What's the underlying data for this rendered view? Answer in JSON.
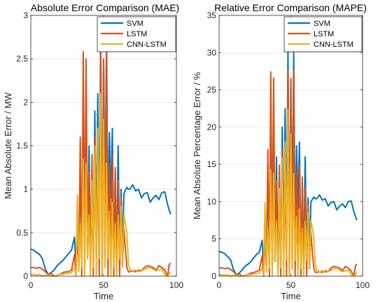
{
  "colors": {
    "svm": "#0072BD",
    "lstm": "#D95319",
    "cnn_lstm": "#EDB120",
    "grid": "#E6E6E6",
    "axis": "#262626"
  },
  "chart_data": [
    {
      "type": "line",
      "title": "Absolute Error Comparison (MAE)",
      "xlabel": "Time",
      "ylabel": "Mean Absolute Error / MW",
      "xlim": [
        0,
        100
      ],
      "ylim": [
        0,
        3
      ],
      "xticks": [
        "0",
        "50",
        "100"
      ],
      "yticks": [
        "0",
        "0.5",
        "1",
        "1.5",
        "2",
        "2.5",
        "3"
      ],
      "grid": "on",
      "legend_position": "top-right",
      "series": [
        {
          "name": "SVM",
          "color": "#0072BD",
          "x": [
            0,
            2,
            4,
            6,
            8,
            10,
            12,
            14,
            16,
            18,
            20,
            22,
            24,
            26,
            28,
            30,
            31,
            32,
            33,
            34,
            35,
            36,
            37,
            38,
            39,
            40,
            41,
            42,
            43,
            44,
            45,
            46,
            47,
            48,
            49,
            50,
            51,
            52,
            53,
            54,
            55,
            56,
            57,
            58,
            59,
            60,
            61,
            62,
            63,
            64,
            65,
            66,
            67,
            68,
            70,
            72,
            74,
            76,
            78,
            80,
            82,
            84,
            86,
            88,
            90,
            92,
            94,
            96
          ],
          "y": [
            0.31,
            0.3,
            0.27,
            0.25,
            0.2,
            0.08,
            0.02,
            0.04,
            0.07,
            0.12,
            0.15,
            0.18,
            0.22,
            0.26,
            0.3,
            0.45,
            0.1,
            0.6,
            0.2,
            1.2,
            0.3,
            2.05,
            0.5,
            1.6,
            0.2,
            1.5,
            0.15,
            0.9,
            0.1,
            1.9,
            0.3,
            2.1,
            0.4,
            2.88,
            0.3,
            2.5,
            0.8,
            2.82,
            0.5,
            1.65,
            0.9,
            1.7,
            0.1,
            1.2,
            0.15,
            1.5,
            0.2,
            1.0,
            0.3,
            0.95,
            0.99,
            1.02,
            1.0,
            1.0,
            1.05,
            0.98,
            1.0,
            0.9,
            0.95,
            0.96,
            0.85,
            0.9,
            0.93,
            0.88,
            0.96,
            0.97,
            0.82,
            0.71
          ]
        },
        {
          "name": "LSTM",
          "color": "#D95319",
          "x": [
            0,
            2,
            4,
            6,
            8,
            10,
            12,
            14,
            16,
            18,
            20,
            22,
            24,
            26,
            28,
            30,
            31,
            32,
            33,
            34,
            35,
            36,
            37,
            38,
            39,
            40,
            41,
            42,
            43,
            44,
            45,
            46,
            47,
            48,
            49,
            50,
            51,
            52,
            53,
            54,
            55,
            56,
            57,
            58,
            59,
            60,
            61,
            62,
            63,
            64,
            65,
            66,
            67,
            68,
            70,
            72,
            74,
            76,
            78,
            80,
            82,
            84,
            86,
            88,
            90,
            92,
            94,
            95,
            96
          ],
          "y": [
            0.1,
            0.1,
            0.09,
            0.1,
            0.08,
            0.05,
            0.02,
            0.03,
            0.0,
            0.01,
            0.02,
            0.04,
            0.05,
            0.05,
            0.07,
            0.25,
            0.0,
            0.5,
            0.1,
            1.6,
            0.0,
            2.58,
            0.4,
            2.5,
            0.3,
            1.2,
            0.1,
            1.4,
            0.0,
            1.6,
            0.2,
            1.3,
            0.0,
            2.6,
            0.0,
            2.5,
            0.1,
            2.6,
            0.0,
            1.3,
            0.2,
            1.4,
            0.0,
            1.25,
            0.1,
            1.1,
            0.0,
            0.9,
            0.1,
            0.55,
            0.3,
            0.1,
            0.05,
            0.05,
            0.06,
            0.05,
            0.07,
            0.06,
            0.1,
            0.12,
            0.11,
            0.1,
            0.07,
            0.12,
            0.1,
            0.07,
            0.0,
            0.13,
            0.15
          ]
        },
        {
          "name": "CNN-LSTM",
          "color": "#EDB120",
          "x": [
            0,
            2,
            4,
            6,
            8,
            10,
            12,
            14,
            16,
            18,
            20,
            22,
            24,
            26,
            28,
            30,
            31,
            32,
            33,
            34,
            35,
            36,
            37,
            38,
            39,
            40,
            41,
            42,
            43,
            44,
            45,
            46,
            47,
            48,
            49,
            50,
            51,
            52,
            53,
            54,
            55,
            56,
            57,
            58,
            59,
            60,
            61,
            62,
            63,
            64,
            65,
            66,
            67,
            68,
            70,
            72,
            74,
            76,
            78,
            80,
            82,
            84,
            86,
            88,
            90,
            92,
            94,
            96
          ],
          "y": [
            0.02,
            0.02,
            0.01,
            0.02,
            0.0,
            0.01,
            0.01,
            0.0,
            0.0,
            0.01,
            0.02,
            0.02,
            0.03,
            0.03,
            0.04,
            0.1,
            0.0,
            0.93,
            0.05,
            0.6,
            0.1,
            1.35,
            0.0,
            1.3,
            0.2,
            0.7,
            0.0,
            1.1,
            0.1,
            1.5,
            0.0,
            1.7,
            0.2,
            2.1,
            0.0,
            1.8,
            0.1,
            1.3,
            0.2,
            0.75,
            0.0,
            0.85,
            0.1,
            0.6,
            0.0,
            0.7,
            0.2,
            0.8,
            0.1,
            0.7,
            0.6,
            0.5,
            0.15,
            0.08,
            0.06,
            0.07,
            0.05,
            0.06,
            0.08,
            0.09,
            0.1,
            0.08,
            0.06,
            0.07,
            0.08,
            0.02,
            0.0,
            0.05
          ]
        }
      ]
    },
    {
      "type": "line",
      "title": "Relative Error Comparison (MAPE)",
      "xlabel": "Time",
      "ylabel": "Mean Absolute Percentage Error / %",
      "xlim": [
        0,
        100
      ],
      "ylim": [
        0,
        35
      ],
      "xticks": [
        "0",
        "50",
        "100"
      ],
      "yticks": [
        "0",
        "5",
        "10",
        "15",
        "20",
        "25",
        "30",
        "35"
      ],
      "grid": "on",
      "legend_position": "top-right",
      "series": [
        {
          "name": "SVM",
          "color": "#0072BD",
          "x": [
            0,
            2,
            4,
            6,
            8,
            10,
            12,
            14,
            16,
            18,
            20,
            22,
            24,
            26,
            28,
            30,
            31,
            32,
            33,
            34,
            35,
            36,
            37,
            38,
            39,
            40,
            41,
            42,
            43,
            44,
            45,
            46,
            47,
            48,
            49,
            50,
            51,
            52,
            53,
            54,
            55,
            56,
            57,
            58,
            59,
            60,
            61,
            62,
            63,
            64,
            65,
            66,
            67,
            68,
            70,
            72,
            74,
            76,
            78,
            80,
            82,
            84,
            86,
            88,
            90,
            92,
            94,
            96
          ],
          "y": [
            3.3,
            3.2,
            3.0,
            2.6,
            2.2,
            0.9,
            0.2,
            0.4,
            0.8,
            1.3,
            1.6,
            1.9,
            2.4,
            2.9,
            3.2,
            4.8,
            1.0,
            6.4,
            2.0,
            13.0,
            3.0,
            21.8,
            5.0,
            17.0,
            2.0,
            16.0,
            1.5,
            9.5,
            1.0,
            20.0,
            3.0,
            22.5,
            4.0,
            30.6,
            3.0,
            26.5,
            8.0,
            30.0,
            5.0,
            17.5,
            9.0,
            18.0,
            1.0,
            12.5,
            1.5,
            16.0,
            2.0,
            10.5,
            3.0,
            10.0,
            10.3,
            10.6,
            10.4,
            10.4,
            10.9,
            10.2,
            10.4,
            9.4,
            9.9,
            10.0,
            8.9,
            9.4,
            9.7,
            9.2,
            10.0,
            10.1,
            8.6,
            7.5
          ]
        },
        {
          "name": "LSTM",
          "color": "#D95319",
          "x": [
            0,
            2,
            4,
            6,
            8,
            10,
            12,
            14,
            16,
            18,
            20,
            22,
            24,
            26,
            28,
            30,
            31,
            32,
            33,
            34,
            35,
            36,
            37,
            38,
            39,
            40,
            41,
            42,
            43,
            44,
            45,
            46,
            47,
            48,
            49,
            50,
            51,
            52,
            53,
            54,
            55,
            56,
            57,
            58,
            59,
            60,
            61,
            62,
            63,
            64,
            65,
            66,
            67,
            68,
            70,
            72,
            74,
            76,
            78,
            80,
            82,
            84,
            86,
            88,
            90,
            92,
            94,
            95,
            96
          ],
          "y": [
            1.1,
            1.1,
            1.0,
            1.1,
            0.9,
            0.6,
            0.2,
            0.3,
            0.0,
            0.1,
            0.2,
            0.4,
            0.5,
            0.6,
            0.8,
            2.7,
            0.0,
            5.3,
            1.0,
            17.0,
            0.0,
            27.4,
            4.0,
            26.6,
            3.0,
            12.8,
            1.0,
            14.9,
            0.0,
            17.0,
            2.0,
            13.8,
            0.0,
            27.6,
            0.0,
            26.5,
            1.0,
            27.6,
            0.0,
            13.8,
            2.0,
            14.9,
            0.0,
            13.3,
            1.0,
            11.7,
            0.0,
            9.6,
            1.0,
            5.9,
            3.2,
            1.1,
            0.5,
            0.5,
            0.6,
            0.5,
            0.7,
            0.6,
            1.1,
            1.3,
            1.2,
            1.1,
            0.7,
            1.3,
            1.1,
            0.7,
            0.0,
            1.4,
            1.6
          ]
        },
        {
          "name": "CNN-LSTM",
          "color": "#EDB120",
          "x": [
            0,
            2,
            4,
            6,
            8,
            10,
            12,
            14,
            16,
            18,
            20,
            22,
            24,
            26,
            28,
            30,
            31,
            32,
            33,
            34,
            35,
            36,
            37,
            38,
            39,
            40,
            41,
            42,
            43,
            44,
            45,
            46,
            47,
            48,
            49,
            50,
            51,
            52,
            53,
            54,
            55,
            56,
            57,
            58,
            59,
            60,
            61,
            62,
            63,
            64,
            65,
            66,
            67,
            68,
            70,
            72,
            74,
            76,
            78,
            80,
            82,
            84,
            86,
            88,
            90,
            92,
            94,
            96
          ],
          "y": [
            0.2,
            0.2,
            0.1,
            0.2,
            0.0,
            0.1,
            0.1,
            0.0,
            0.0,
            0.1,
            0.2,
            0.2,
            0.3,
            0.3,
            0.4,
            1.1,
            0.0,
            9.9,
            0.5,
            6.4,
            1.1,
            14.3,
            0.0,
            13.8,
            2.1,
            7.4,
            0.0,
            11.7,
            1.1,
            15.9,
            0.0,
            18.0,
            2.1,
            22.3,
            0.0,
            19.1,
            1.1,
            13.8,
            2.1,
            8.0,
            0.0,
            9.0,
            1.1,
            6.4,
            0.0,
            7.4,
            2.1,
            8.5,
            1.1,
            7.4,
            6.4,
            5.3,
            1.6,
            0.8,
            0.6,
            0.7,
            0.5,
            0.6,
            0.8,
            1.0,
            1.1,
            0.8,
            0.6,
            0.7,
            0.8,
            0.2,
            0.0,
            0.5
          ]
        }
      ]
    }
  ]
}
